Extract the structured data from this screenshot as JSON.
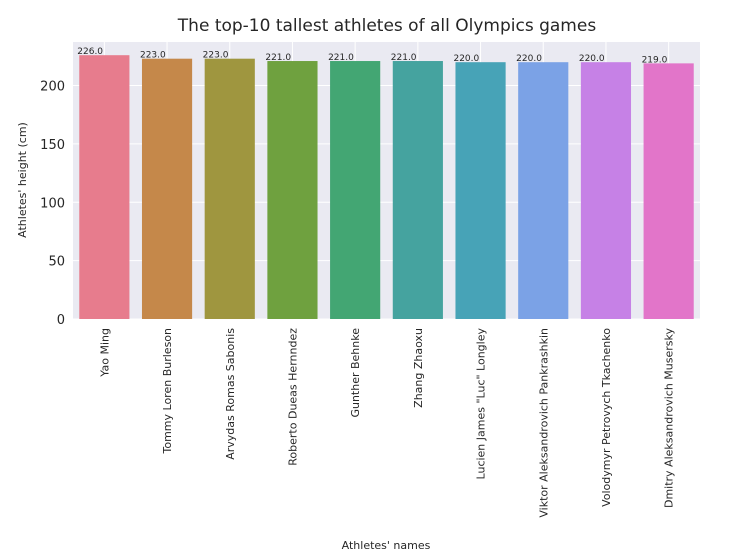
{
  "chart_data": {
    "type": "bar",
    "title": "The top-10 tallest athletes of all Olympics games",
    "xlabel": "Athletes' names",
    "ylabel": "Athletes' height (cm)",
    "categories": [
      "Yao Ming",
      "Tommy Loren Burleson",
      "Arvydas Romas Sabonis",
      "Roberto Dueas Hernndez",
      "Gunther Behnke",
      "Zhang Zhaoxu",
      "Lucien James \"Luc\" Longley",
      "Viktor Aleksandrovich Pankrashkin",
      "Volodymyr Petrovych Tkachenko",
      "Dmitry Aleksandrovich Musersky"
    ],
    "values": [
      226.0,
      223.0,
      223.0,
      221.0,
      221.0,
      221.0,
      220.0,
      220.0,
      220.0,
      219.0
    ],
    "data_labels": [
      "226.0",
      "223.0",
      "223.0",
      "221.0",
      "221.0",
      "221.0",
      "220.0",
      "220.0",
      "220.0",
      "219.0"
    ],
    "yticks": [
      0,
      50,
      100,
      150,
      200
    ],
    "ylim": [
      0,
      237.3
    ],
    "grid": true,
    "colors": [
      "#e77c8d",
      "#c5884a",
      "#9f963f",
      "#6fa13f",
      "#43a673",
      "#45a39f",
      "#47a3b7",
      "#7ba2e6",
      "#c681e6",
      "#e275c9"
    ],
    "background": "#eaeaf2"
  }
}
